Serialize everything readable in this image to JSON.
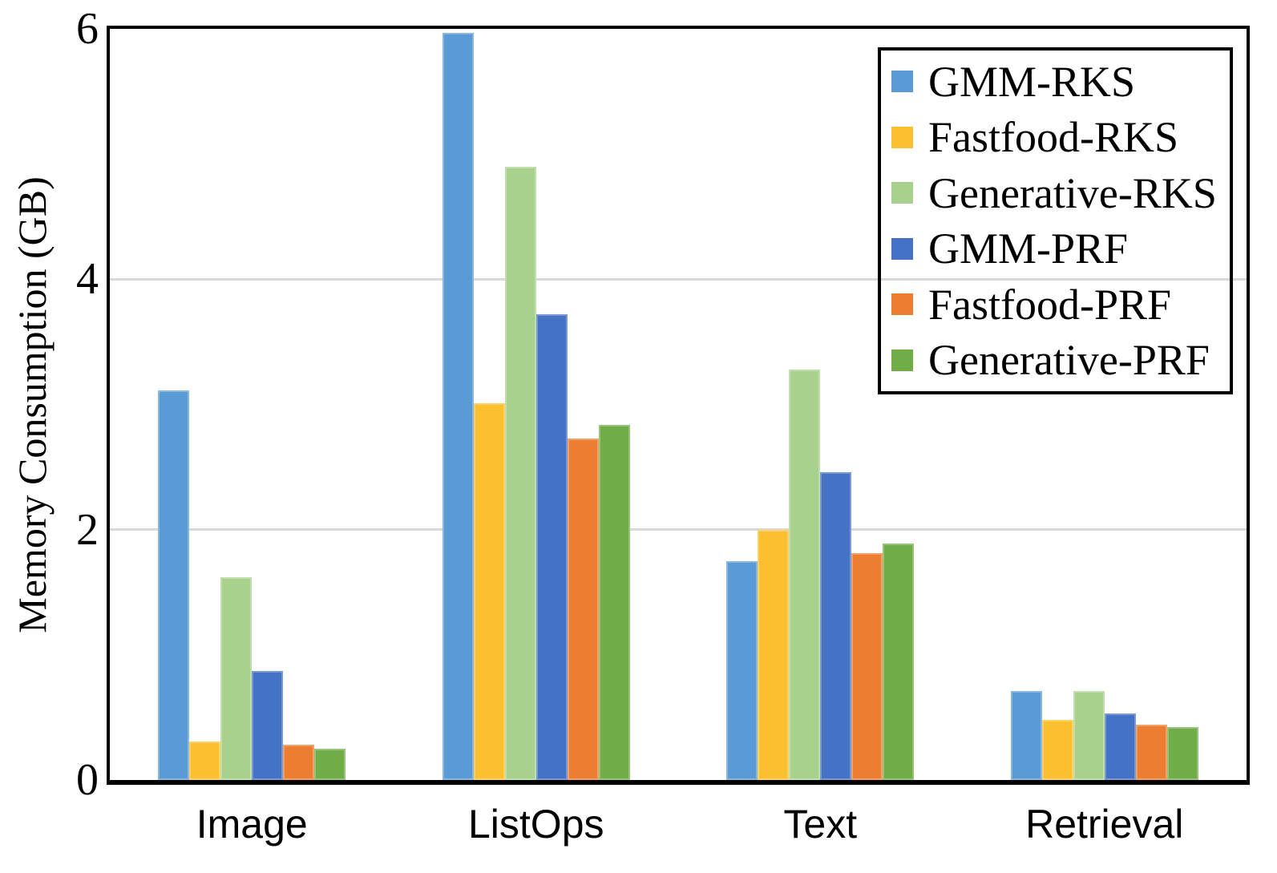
{
  "chart_data": {
    "type": "bar",
    "title": "",
    "xlabel": "",
    "ylabel": "Memory Consumption (GB)",
    "ylim": [
      0,
      6
    ],
    "yticks": [
      0,
      2,
      4,
      6
    ],
    "grid": "horizontal gridlines at y=2 and y=4, light gray",
    "legend_position": "top-right inside plot, black-bordered box, transparent fill",
    "categories": [
      "Image",
      "ListOps",
      "Text",
      "Retrieval"
    ],
    "series": [
      {
        "name": "GMM-RKS",
        "color": "#5B9BD5",
        "values": [
          3.11,
          5.97,
          1.75,
          0.71
        ]
      },
      {
        "name": "Fastfood-RKS",
        "color": "#FCC02E",
        "values": [
          0.31,
          3.01,
          2.0,
          0.48
        ]
      },
      {
        "name": "Generative-RKS",
        "color": "#A9D18E",
        "values": [
          1.62,
          4.9,
          3.28,
          0.71
        ]
      },
      {
        "name": "GMM-PRF",
        "color": "#4472C4",
        "values": [
          0.87,
          3.72,
          2.46,
          0.53
        ]
      },
      {
        "name": "Fastfood-PRF",
        "color": "#ED7D31",
        "values": [
          0.28,
          2.73,
          1.81,
          0.44
        ]
      },
      {
        "name": "Generative-PRF",
        "color": "#70AD47",
        "values": [
          0.25,
          2.84,
          1.89,
          0.42
        ]
      }
    ],
    "axis_color": "#000000",
    "gridline_color": "#D9D9D9"
  }
}
